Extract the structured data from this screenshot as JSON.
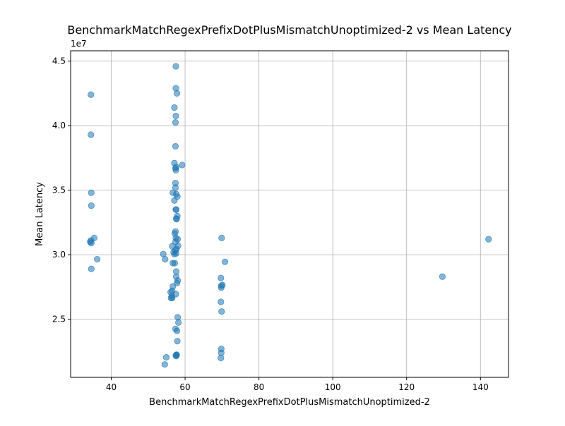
{
  "chart_data": {
    "type": "scatter",
    "title": "BenchmarkMatchRegexPrefixDotPlusMismatchUnoptimized-2 vs Mean Latency",
    "xlabel": "BenchmarkMatchRegexPrefixDotPlusMismatchUnoptimized-2",
    "ylabel": "Mean Latency",
    "y_offset_label": "1e7",
    "xlim": [
      29,
      147.6
    ],
    "ylim": [
      20500000,
      45800000
    ],
    "xticks": [
      40,
      60,
      80,
      100,
      120,
      140
    ],
    "yticks": [
      25000000,
      30000000,
      35000000,
      40000000,
      45000000
    ],
    "xtick_labels": [
      "40",
      "60",
      "80",
      "100",
      "120",
      "140"
    ],
    "ytick_labels": [
      "2.5",
      "3.0",
      "3.5",
      "4.0",
      "4.5"
    ],
    "grid": true,
    "marker_color": "#1f77b4",
    "marker_alpha": 0.55,
    "x": [
      34.5,
      34.5,
      34.6,
      34.6,
      34.3,
      34.5,
      34.6,
      35.4,
      36.2,
      34.6,
      57.5,
      57.5,
      57.8,
      57.1,
      57.5,
      57.4,
      57.4,
      57.1,
      57.6,
      57.4,
      57.5,
      59.2,
      57.4,
      57.4,
      56.7,
      57.6,
      57.9,
      57.1,
      57.5,
      57.6,
      57.6,
      57.7,
      57.9,
      57.4,
      57.2,
      57.5,
      58.0,
      57.4,
      56.5,
      58.1,
      57.7,
      57.4,
      56.9,
      57.6,
      57.1,
      54.1,
      54.6,
      57.2,
      56.7,
      57.6,
      57.6,
      58.0,
      57.8,
      56.7,
      56.5,
      56.1,
      57.5,
      56.2,
      56.5,
      56.4,
      58.0,
      58.2,
      57.4,
      57.8,
      57.9,
      57.7,
      57.6,
      54.9,
      54.5,
      57.5,
      57.7,
      69.9,
      70.8,
      69.7,
      70.1,
      69.8,
      69.8,
      69.7,
      69.9,
      69.8,
      69.8,
      69.7,
      129.7,
      142.2
    ],
    "y": [
      42400000,
      39300000,
      34800000,
      33800000,
      31000000,
      31100000,
      30900000,
      31300000,
      29650000,
      28900000,
      44600000,
      42900000,
      42500000,
      41400000,
      40750000,
      40250000,
      38400000,
      37100000,
      36800000,
      36700000,
      36550000,
      36950000,
      35550000,
      35200000,
      34800000,
      34700000,
      34500000,
      34200000,
      33500000,
      33500000,
      32800000,
      32750000,
      33000000,
      31800000,
      31650000,
      31300000,
      31200000,
      31000000,
      30650000,
      30700000,
      30450000,
      30350000,
      30200000,
      30100000,
      30050000,
      30050000,
      29650000,
      29350000,
      29350000,
      28700000,
      28300000,
      28000000,
      27800000,
      27550000,
      27200000,
      27100000,
      26950000,
      26650000,
      26650000,
      26800000,
      25150000,
      24750000,
      24250000,
      24100000,
      23300000,
      22250000,
      22150000,
      22050000,
      21500000,
      22200000,
      22250000,
      31300000,
      29450000,
      28200000,
      27650000,
      27600000,
      27450000,
      26350000,
      25600000,
      22700000,
      22400000,
      22000000,
      28300000,
      31200000
    ]
  }
}
